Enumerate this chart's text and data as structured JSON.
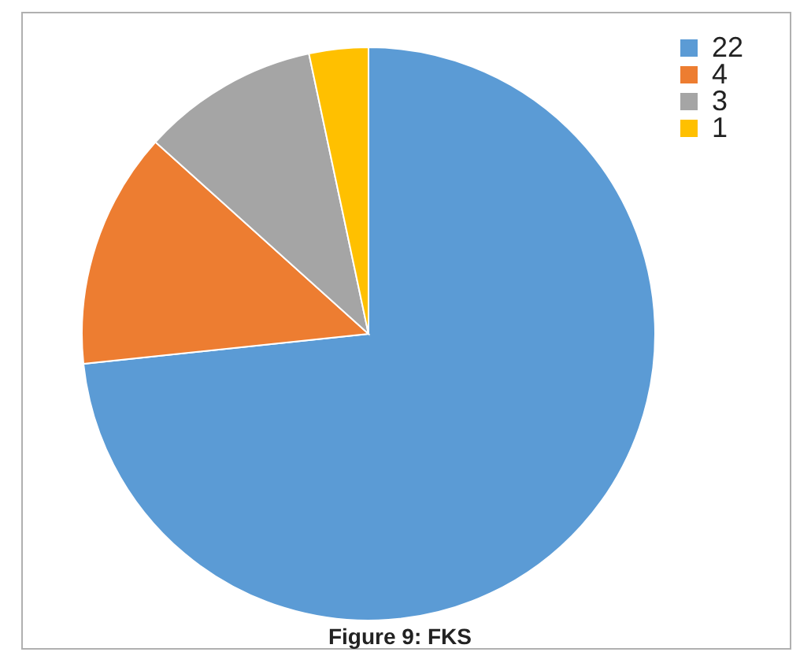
{
  "chart_data": {
    "type": "pie",
    "categories": [
      "22",
      "4",
      "3",
      "1"
    ],
    "values": [
      22,
      4,
      3,
      1
    ],
    "colors": [
      "#5b9bd5",
      "#ed7d31",
      "#a5a5a5",
      "#ffc000"
    ],
    "legend": "top right",
    "annotations": [
      "Figure 9: FKS"
    ]
  }
}
